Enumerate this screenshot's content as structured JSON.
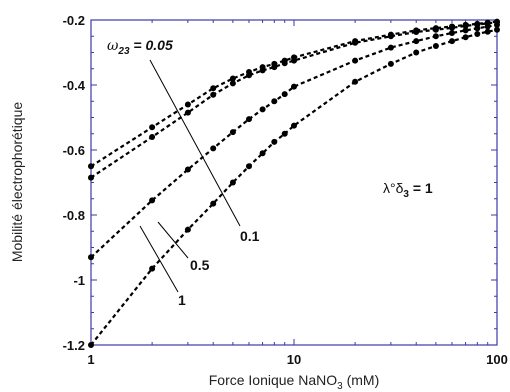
{
  "chart_data": {
    "type": "line",
    "x_scale": "log",
    "xlabel": "Force Ionique NaNO",
    "xlabel_sub": "3",
    "xlabel_unit": " (mM)",
    "ylabel": "Mobilité électrophorétique",
    "xlim": [
      1,
      100
    ],
    "ylim": [
      -1.2,
      -0.2
    ],
    "x_ticks": [
      "1",
      "10",
      "100"
    ],
    "y_ticks": [
      "-0.2",
      "-0.4",
      "-0.6",
      "-0.8",
      "-1",
      "-1.2"
    ],
    "series": [
      {
        "name": "0.05",
        "x": [
          1,
          2,
          3,
          4,
          5,
          6,
          7,
          8,
          9,
          10,
          20,
          30,
          40,
          50,
          60,
          70,
          80,
          90,
          100
        ],
        "values": [
          -0.65,
          -0.53,
          -0.46,
          -0.41,
          -0.38,
          -0.36,
          -0.345,
          -0.335,
          -0.325,
          -0.315,
          -0.265,
          -0.245,
          -0.232,
          -0.225,
          -0.22,
          -0.215,
          -0.212,
          -0.208,
          -0.205
        ]
      },
      {
        "name": "0.1",
        "x": [
          1,
          2,
          3,
          4,
          5,
          6,
          7,
          8,
          9,
          10,
          20,
          30,
          40,
          50,
          60,
          70,
          80,
          90,
          100
        ],
        "values": [
          -0.685,
          -0.56,
          -0.485,
          -0.43,
          -0.395,
          -0.37,
          -0.355,
          -0.345,
          -0.333,
          -0.325,
          -0.27,
          -0.25,
          -0.237,
          -0.23,
          -0.224,
          -0.218,
          -0.214,
          -0.21,
          -0.207
        ]
      },
      {
        "name": "0.5",
        "x": [
          1,
          2,
          3,
          4,
          5,
          6,
          7,
          8,
          9,
          10,
          20,
          30,
          40,
          50,
          60,
          70,
          80,
          90,
          100
        ],
        "values": [
          -0.93,
          -0.755,
          -0.66,
          -0.595,
          -0.545,
          -0.505,
          -0.475,
          -0.45,
          -0.428,
          -0.405,
          -0.325,
          -0.285,
          -0.265,
          -0.25,
          -0.24,
          -0.232,
          -0.226,
          -0.22,
          -0.215
        ]
      },
      {
        "name": "1",
        "x": [
          1,
          2,
          3,
          4,
          5,
          6,
          7,
          8,
          9,
          10,
          20,
          30,
          40,
          50,
          60,
          70,
          80,
          90,
          100
        ],
        "values": [
          -1.2,
          -0.965,
          -0.845,
          -0.765,
          -0.7,
          -0.65,
          -0.61,
          -0.575,
          -0.55,
          -0.525,
          -0.39,
          -0.335,
          -0.3,
          -0.28,
          -0.265,
          -0.253,
          -0.243,
          -0.236,
          -0.23
        ]
      }
    ],
    "annotations": {
      "omega_prefix": "ω",
      "omega_sub": "23",
      "omega_value": " = 0.05",
      "lambda_prefix": "λ°δ",
      "lambda_sub": "3",
      "lambda_value": " = 1",
      "label_01": "0.1",
      "label_05": "0.5",
      "label_1": "1"
    },
    "colors": {
      "frame": "#3a3aa8",
      "data": "#000000"
    }
  }
}
